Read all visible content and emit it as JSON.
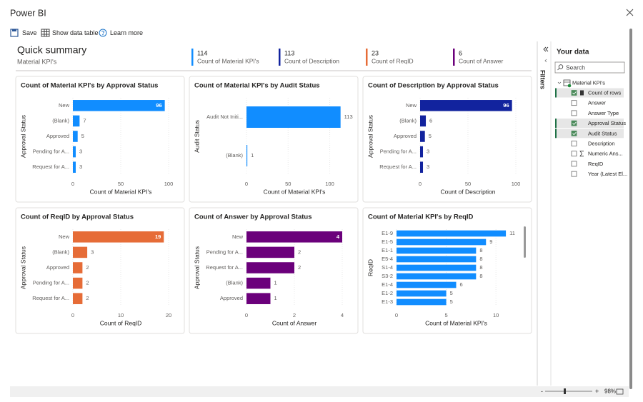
{
  "window": {
    "title": "Power BI"
  },
  "toolbar": {
    "save": "Save",
    "show_data_table": "Show data table",
    "learn_more": "Learn more"
  },
  "summary": {
    "title": "Quick summary",
    "subtitle": "Material KPI's",
    "cards": [
      {
        "value": 114,
        "label": "Count of Material KPI's",
        "color": "#118dff"
      },
      {
        "value": 113,
        "label": "Count of Description",
        "color": "#12239e"
      },
      {
        "value": 23,
        "label": "Count of ReqID",
        "color": "#e66c37"
      },
      {
        "value": 6,
        "label": "Count of Answer",
        "color": "#6b007b"
      }
    ]
  },
  "chart_data": [
    {
      "type": "bar",
      "orientation": "horizontal",
      "title": "Count of Material KPI's by Approval Status",
      "x_label": "Count of Material KPI's",
      "y_label": "Approval Status",
      "categories": [
        "New",
        "(Blank)",
        "Approved",
        "Pending for A...",
        "Request for A..."
      ],
      "values": [
        96,
        7,
        5,
        3,
        3
      ],
      "color": "#118dff",
      "xlim": [
        0,
        100
      ],
      "xticks": [
        0,
        50,
        100
      ]
    },
    {
      "type": "bar",
      "orientation": "horizontal",
      "title": "Count of Material KPI's by Audit Status",
      "x_label": "Count of Material KPI's",
      "y_label": "Audit Status",
      "categories": [
        "Audit Not Initi...",
        "(Blank)"
      ],
      "values": [
        113,
        1
      ],
      "color": "#118dff",
      "xlim": [
        0,
        115
      ],
      "xticks": [
        0,
        50,
        100
      ]
    },
    {
      "type": "bar",
      "orientation": "horizontal",
      "title": "Count of Description by Approval Status",
      "x_label": "Count of Description",
      "y_label": "Approval Status",
      "categories": [
        "New",
        "(Blank)",
        "Approved",
        "Pending for A...",
        "Request for A..."
      ],
      "values": [
        96,
        6,
        5,
        3,
        3
      ],
      "color": "#12239e",
      "xlim": [
        0,
        100
      ],
      "xticks": [
        0,
        50,
        100
      ]
    },
    {
      "type": "bar",
      "orientation": "horizontal",
      "title": "Count of ReqID by Approval Status",
      "x_label": "Count of ReqID",
      "y_label": "Approval Status",
      "categories": [
        "New",
        "(Blank)",
        "Approved",
        "Pending for A...",
        "Request for A..."
      ],
      "values": [
        19,
        3,
        2,
        2,
        2
      ],
      "color": "#e66c37",
      "xlim": [
        0,
        20
      ],
      "xticks": [
        0,
        10,
        20
      ]
    },
    {
      "type": "bar",
      "orientation": "horizontal",
      "title": "Count of Answer by Approval Status",
      "x_label": "Count of Answer",
      "y_label": "Approval Status",
      "categories": [
        "New",
        "Pending for A...",
        "Request for A...",
        "(Blank)",
        "Approved"
      ],
      "values": [
        4,
        2,
        2,
        1,
        1
      ],
      "color": "#6b007b",
      "xlim": [
        0,
        4
      ],
      "xticks": [
        0,
        2,
        4
      ]
    },
    {
      "type": "bar",
      "orientation": "horizontal",
      "title": "Count of Material KPI's by ReqID",
      "x_label": "Count of Material KPI's",
      "y_label": "ReqID",
      "categories": [
        "E1-9",
        "E1-5",
        "E1-1",
        "E5-4",
        "S1-4",
        "S3-2",
        "E1-4",
        "E1-2",
        "E1-3"
      ],
      "values": [
        11,
        9,
        8,
        8,
        8,
        8,
        6,
        5,
        5
      ],
      "color": "#118dff",
      "xlim": [
        0,
        12
      ],
      "xticks": [
        0,
        5,
        10
      ]
    }
  ],
  "data_pane": {
    "filters": "Filters",
    "title": "Your data",
    "search_placeholder": "Search",
    "table": "Material KPI's",
    "fields": [
      {
        "label": "Count of rows",
        "checked": true
      },
      {
        "label": "Answer",
        "checked": false
      },
      {
        "label": "Answer Type",
        "checked": false
      },
      {
        "label": "Approval Status",
        "checked": true
      },
      {
        "label": "Audit Status",
        "checked": true
      },
      {
        "label": "Description",
        "checked": false
      },
      {
        "label": "Numeric Ans...",
        "checked": false
      },
      {
        "label": "ReqID",
        "checked": false
      },
      {
        "label": "Year (Latest El...",
        "checked": false
      }
    ]
  },
  "zoom": {
    "minus": "-",
    "plus": "+",
    "level": "98%"
  }
}
